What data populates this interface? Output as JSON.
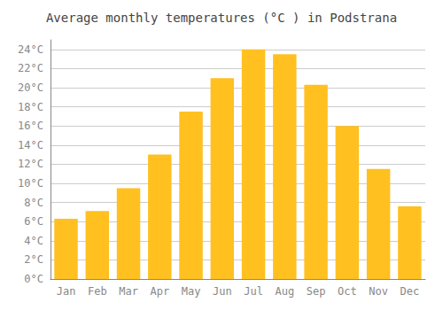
{
  "chart_data": {
    "type": "bar",
    "title": "Average monthly temperatures (°C ) in Podstrana",
    "categories": [
      "Jan",
      "Feb",
      "Mar",
      "Apr",
      "May",
      "Jun",
      "Jul",
      "Aug",
      "Sep",
      "Oct",
      "Nov",
      "Dec"
    ],
    "values": [
      6.3,
      7.1,
      9.5,
      13.0,
      17.5,
      21.0,
      24.0,
      23.5,
      20.3,
      16.0,
      11.5,
      7.6
    ],
    "color": "#FFC020",
    "ylim": [
      0,
      25
    ],
    "yticks": [
      {
        "value": 0,
        "label": "0°C"
      },
      {
        "value": 2,
        "label": "2°C"
      },
      {
        "value": 4,
        "label": "4°C"
      },
      {
        "value": 6,
        "label": "6°C"
      },
      {
        "value": 8,
        "label": "8°C"
      },
      {
        "value": 10,
        "label": "10°C"
      },
      {
        "value": 12,
        "label": "12°C"
      },
      {
        "value": 14,
        "label": "14°C"
      },
      {
        "value": 16,
        "label": "16°C"
      },
      {
        "value": 18,
        "label": "18°C"
      },
      {
        "value": 20,
        "label": "20°C"
      },
      {
        "value": 22,
        "label": "22°C"
      },
      {
        "value": 24,
        "label": "24°C"
      }
    ],
    "grid": true
  }
}
